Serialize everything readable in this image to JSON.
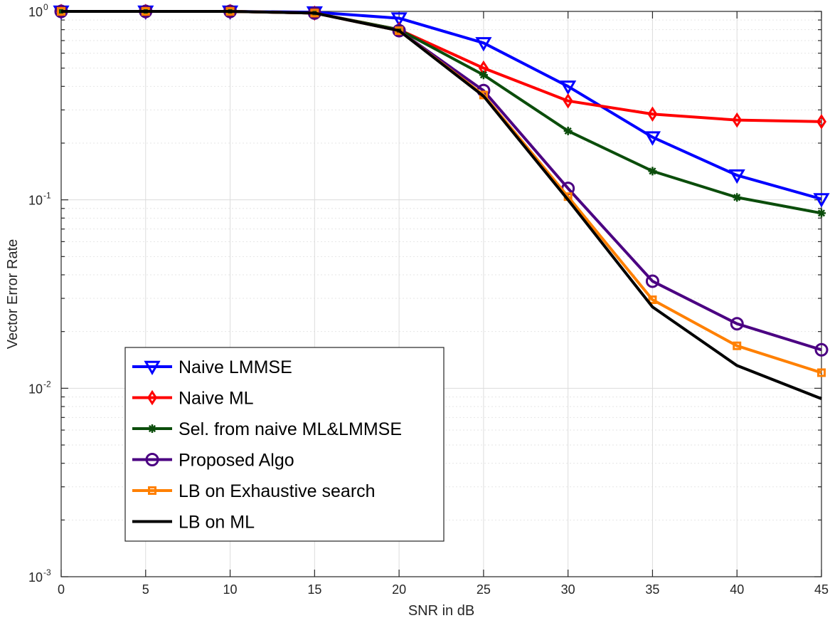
{
  "chart_data": {
    "type": "line",
    "xlabel": "SNR in dB",
    "ylabel": "Vector Error Rate",
    "xlim": [
      0,
      45
    ],
    "ylim": [
      0.001,
      1
    ],
    "yscale": "log",
    "grid": true,
    "legend_position": "bottom-left",
    "x_ticks": [
      {
        "value": 0,
        "label": "0"
      },
      {
        "value": 5,
        "label": "5"
      },
      {
        "value": 10,
        "label": "10"
      },
      {
        "value": 15,
        "label": "15"
      },
      {
        "value": 20,
        "label": "20"
      },
      {
        "value": 25,
        "label": "25"
      },
      {
        "value": 30,
        "label": "30"
      },
      {
        "value": 35,
        "label": "35"
      },
      {
        "value": 40,
        "label": "40"
      },
      {
        "value": 45,
        "label": "45"
      }
    ],
    "y_ticks": [
      {
        "value": 1,
        "base": "10",
        "exp": "0"
      },
      {
        "value": 0.1,
        "base": "10",
        "exp": "-1"
      },
      {
        "value": 0.01,
        "base": "10",
        "exp": "-2"
      },
      {
        "value": 0.001,
        "base": "10",
        "exp": "-3"
      }
    ],
    "x": [
      0,
      5,
      10,
      15,
      20,
      25,
      30,
      35,
      40,
      45
    ],
    "series": [
      {
        "name": "Naive LMMSE",
        "color": "#0000ff",
        "marker": "triangle-down",
        "values": [
          1.0,
          1.0,
          1.0,
          0.99,
          0.92,
          0.68,
          0.4,
          0.215,
          0.135,
          0.101
        ]
      },
      {
        "name": "Naive ML",
        "color": "#ff0000",
        "marker": "diamond",
        "values": [
          1.0,
          1.0,
          1.0,
          0.98,
          0.8,
          0.5,
          0.335,
          0.285,
          0.265,
          0.26
        ]
      },
      {
        "name": "Sel. from naive ML&LMMSE",
        "color": "#0b4d0b",
        "marker": "asterisk",
        "values": [
          1.0,
          1.0,
          1.0,
          0.98,
          0.8,
          0.46,
          0.232,
          0.142,
          0.103,
          0.085
        ]
      },
      {
        "name": "Proposed Algo",
        "color": "#4b0082",
        "marker": "circle",
        "values": [
          1.0,
          1.0,
          1.0,
          0.98,
          0.79,
          0.38,
          0.115,
          0.037,
          0.022,
          0.016
        ]
      },
      {
        "name": "LB on Exhaustive search",
        "color": "#ff8000",
        "marker": "square",
        "values": [
          1.0,
          1.0,
          1.0,
          0.98,
          0.79,
          0.36,
          0.104,
          0.0295,
          0.0168,
          0.0121
        ]
      },
      {
        "name": "LB on ML",
        "color": "#000000",
        "marker": "none",
        "values": [
          1.0,
          1.0,
          1.0,
          0.98,
          0.79,
          0.355,
          0.1,
          0.027,
          0.0132,
          0.0088
        ]
      }
    ]
  }
}
